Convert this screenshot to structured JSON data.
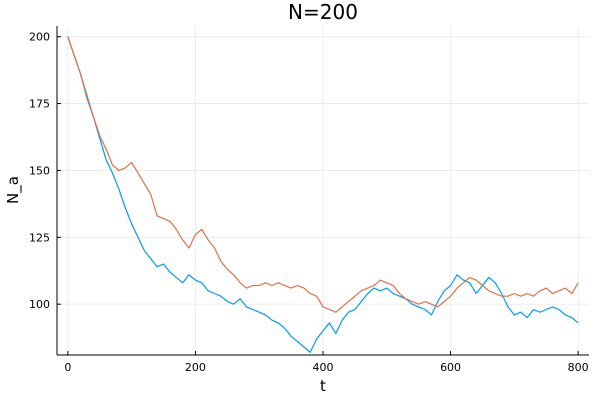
{
  "chart_data": {
    "type": "line",
    "title": "N=200",
    "xlabel": "t",
    "ylabel": "N_a",
    "xlim": [
      -17,
      817
    ],
    "ylim": [
      81,
      204
    ],
    "xticks": [
      0,
      200,
      400,
      600,
      800
    ],
    "yticks": [
      100,
      125,
      150,
      175,
      200
    ],
    "grid": true,
    "legend": "none",
    "colors": [
      "#009af9",
      "#e26f46"
    ],
    "series": [
      {
        "x": [
          0,
          10,
          20,
          30,
          40,
          50,
          60,
          70,
          80,
          90,
          100,
          110,
          120,
          130,
          140,
          150,
          160,
          170,
          180,
          190,
          200,
          210,
          220,
          230,
          240,
          250,
          260,
          270,
          280,
          290,
          300,
          310,
          320,
          330,
          340,
          350,
          360,
          370,
          380,
          390,
          400,
          410,
          420,
          430,
          440,
          450,
          460,
          470,
          480,
          490,
          500,
          510,
          520,
          530,
          540,
          550,
          560,
          570,
          580,
          590,
          600,
          610,
          620,
          630,
          640,
          650,
          660,
          670,
          680,
          690,
          700,
          710,
          720,
          730,
          740,
          750,
          760,
          770,
          780,
          790,
          800
        ],
        "values": [
          200,
          193,
          186,
          177,
          170,
          162,
          154,
          149,
          143,
          136,
          130,
          125,
          120,
          117,
          114,
          115,
          112,
          110,
          108,
          111,
          109,
          108,
          105,
          104,
          103,
          101,
          100,
          102,
          99,
          98,
          97,
          96,
          94,
          93,
          91,
          88,
          86,
          84,
          82,
          87,
          90,
          93,
          89,
          94,
          97,
          98,
          101,
          104,
          106,
          105,
          106,
          104,
          103,
          102,
          100,
          99,
          98,
          96,
          101,
          105,
          107,
          111,
          109,
          108,
          104,
          107,
          110,
          108,
          104,
          99,
          96,
          97,
          95,
          98,
          97,
          98,
          99,
          98,
          96,
          95,
          93
        ]
      },
      {
        "x": [
          0,
          10,
          20,
          30,
          40,
          50,
          60,
          70,
          80,
          90,
          100,
          110,
          120,
          130,
          140,
          150,
          160,
          170,
          180,
          190,
          200,
          210,
          220,
          230,
          240,
          250,
          260,
          270,
          280,
          290,
          300,
          310,
          320,
          330,
          340,
          350,
          360,
          370,
          380,
          390,
          400,
          410,
          420,
          430,
          440,
          450,
          460,
          470,
          480,
          490,
          500,
          510,
          520,
          530,
          540,
          550,
          560,
          570,
          580,
          590,
          600,
          610,
          620,
          630,
          640,
          650,
          660,
          670,
          680,
          690,
          700,
          710,
          720,
          730,
          740,
          750,
          760,
          770,
          780,
          790,
          800
        ],
        "values": [
          200,
          193,
          186,
          178,
          170,
          163,
          158,
          152,
          150,
          151,
          153,
          149,
          145,
          141,
          133,
          132,
          131,
          128,
          124,
          121,
          126,
          128,
          124,
          121,
          116,
          113,
          111,
          108,
          106,
          107,
          107,
          108,
          107,
          108,
          107,
          106,
          107,
          106,
          104,
          103,
          99,
          98,
          97,
          99,
          101,
          103,
          105,
          106,
          107,
          109,
          108,
          107,
          104,
          102,
          101,
          100,
          101,
          100,
          99,
          101,
          103,
          106,
          108,
          110,
          109,
          107,
          105,
          104,
          103,
          103,
          104,
          103,
          104,
          103,
          105,
          106,
          104,
          105,
          106,
          104,
          108
        ]
      }
    ]
  }
}
